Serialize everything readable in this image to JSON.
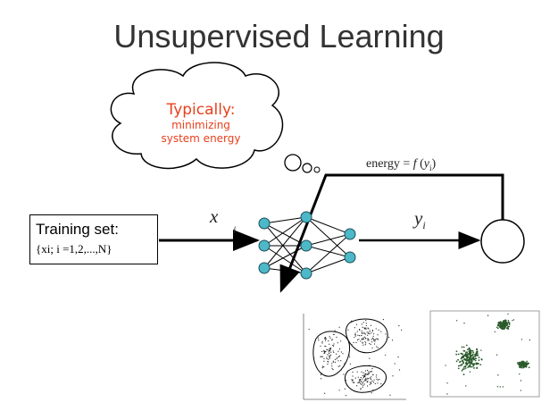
{
  "title": "Unsupervised Learning",
  "cloud": {
    "line1": "Typically:",
    "line2": "minimizing",
    "line3": "system energy"
  },
  "training_box": {
    "line1": "Training set:",
    "line2": "{xi; i =1,2,...,N}"
  },
  "labels": {
    "input_x": "x",
    "input_sub": "i",
    "output_y": "yi",
    "energy": "energy = f(yi)"
  },
  "colors": {
    "cloud_text": "#e8401c",
    "neuron": "#4cb8c8",
    "scatter": "#2b5a2b"
  }
}
